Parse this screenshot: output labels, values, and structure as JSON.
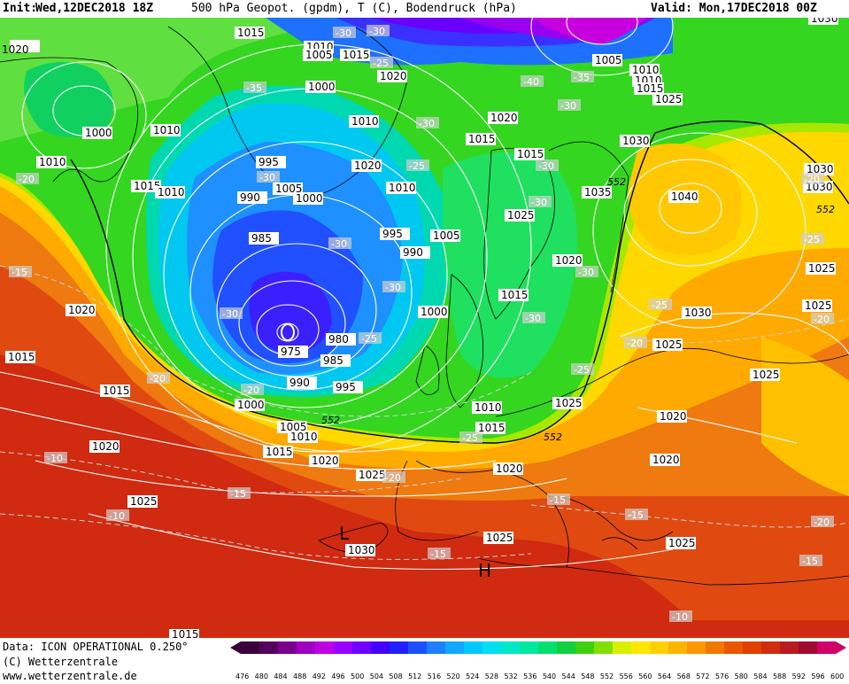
{
  "header": {
    "init_label": "Init:",
    "init_value": "Wed,12DEC2018 18Z",
    "title": "500 hPa Geopot. (gpdm), T (C), Bodendruck (hPa)",
    "valid": "Valid: Mon,17DEC2018 00Z"
  },
  "footer": {
    "data_line": "Data: ICON OPERATIONAL 0.250°",
    "copyright": "(C) Wetterzentrale",
    "url": "www.wetterzentrale.de"
  },
  "legend": {
    "values": [
      "476",
      "480",
      "484",
      "488",
      "492",
      "496",
      "500",
      "504",
      "508",
      "512",
      "516",
      "520",
      "524",
      "528",
      "532",
      "536",
      "540",
      "544",
      "548",
      "552",
      "556",
      "560",
      "564",
      "568",
      "572",
      "576",
      "580",
      "584",
      "588",
      "592",
      "596",
      "600"
    ],
    "colors": [
      "#3a003a",
      "#55005f",
      "#7a0090",
      "#a000c0",
      "#c000e0",
      "#9a00ff",
      "#7000ff",
      "#4400ff",
      "#2020ff",
      "#1e50ff",
      "#1e80ff",
      "#12a8ff",
      "#00c8ff",
      "#00e0f0",
      "#00e8c8",
      "#00e8a0",
      "#00e070",
      "#10d040",
      "#40d010",
      "#80e000",
      "#d8f000",
      "#ffe800",
      "#ffd000",
      "#ffb400",
      "#ff9800",
      "#f07800",
      "#e85800",
      "#e04000",
      "#d02c10",
      "#b81c20",
      "#a00c30",
      "#d0006a"
    ]
  },
  "map": {
    "pressure_labels": [
      "1015",
      "1010",
      "1005",
      "1015",
      "1020",
      "1000",
      "1010",
      "1015",
      "1020",
      "1025",
      "1030",
      "1035",
      "1010",
      "1005",
      "1010",
      "1015",
      "1010",
      "1000",
      "995",
      "1010",
      "1015",
      "1020",
      "1010",
      "1015",
      "1020",
      "1025",
      "990",
      "1005",
      "1000",
      "995",
      "990",
      "1005",
      "1010",
      "985",
      "1025",
      "1020",
      "1040",
      "1030",
      "1025",
      "1025",
      "1015",
      "1030",
      "1020",
      "1015",
      "1000",
      "980",
      "975",
      "985",
      "990",
      "995",
      "1030",
      "1025",
      "1010",
      "1015",
      "1020",
      "1025",
      "1000",
      "1005",
      "1010",
      "1015",
      "1020",
      "1020",
      "1015",
      "1020",
      "1025",
      "1030",
      "1025",
      "1020",
      "1025",
      "1030",
      "1025",
      "1035",
      "1015",
      "1000",
      "1025"
    ],
    "temperature_labels": [
      "-30",
      "-35",
      "-40",
      "-35",
      "-30",
      "-30",
      "-25",
      "-20",
      "-15",
      "-30",
      "-30",
      "-30",
      "-25",
      "-30",
      "-30",
      "-30",
      "-25",
      "-25",
      "-20",
      "-25",
      "-20",
      "-20",
      "-15",
      "-25",
      "-20",
      "-15",
      "-10",
      "-15",
      "-10",
      "-15",
      "-20",
      "-15",
      "-10",
      "-20",
      "-20",
      "-30",
      "-30",
      "-25",
      "-30"
    ],
    "geopotential_labels": [
      "552",
      "552",
      "552",
      "552"
    ],
    "low_marker": "L",
    "high_marker": "H"
  }
}
